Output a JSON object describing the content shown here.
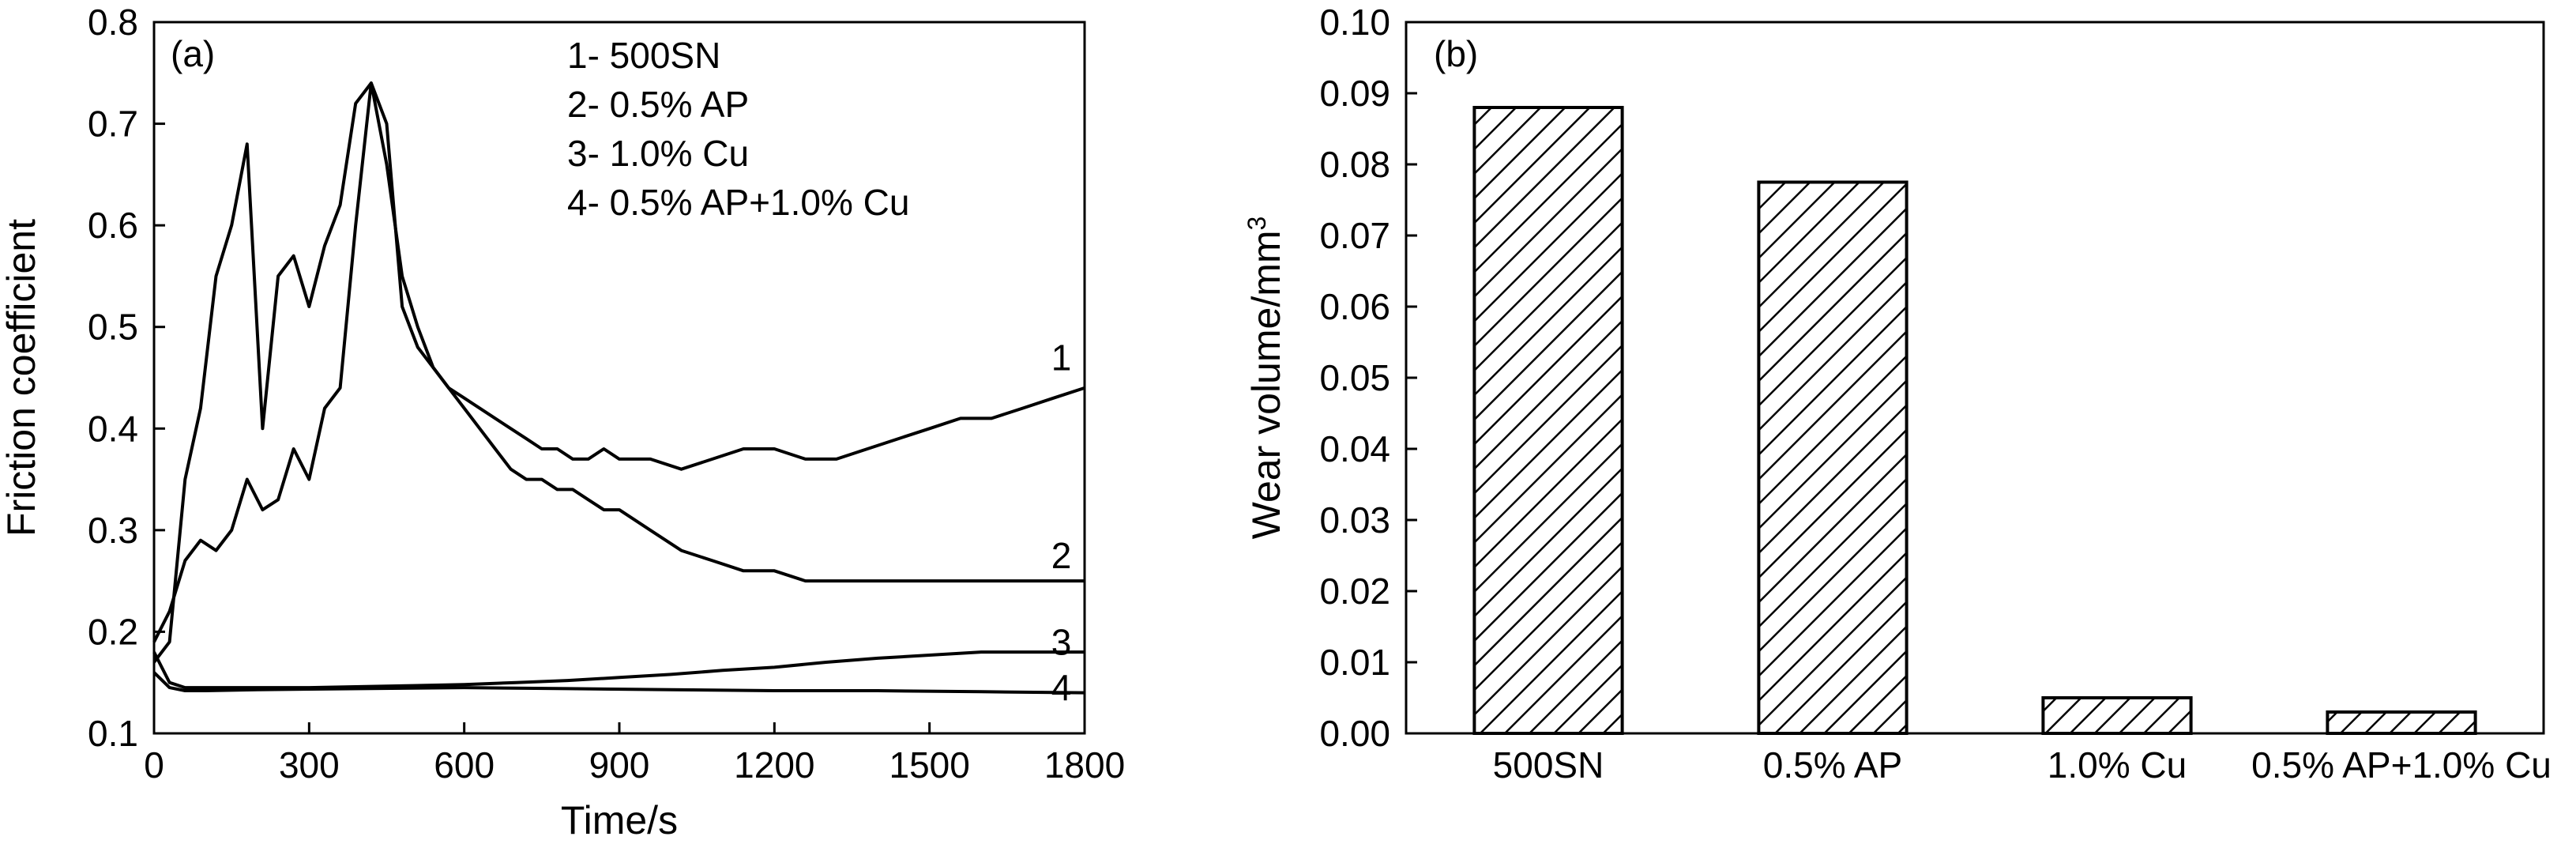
{
  "chart_data": [
    {
      "type": "line",
      "panel_label": "(a)",
      "xlabel": "Time/s",
      "ylabel": "Friction coefficient",
      "xlim": [
        0,
        1800
      ],
      "ylim": [
        0.1,
        0.8
      ],
      "xticks": [
        "0",
        "300",
        "600",
        "900",
        "1200",
        "1500",
        "1800"
      ],
      "yticks": [
        "0.1",
        "0.2",
        "0.3",
        "0.4",
        "0.5",
        "0.6",
        "0.7",
        "0.8"
      ],
      "grid": false,
      "legend_entries": [
        "1- 500SN",
        "2- 0.5% AP",
        "3- 1.0% Cu",
        "4- 0.5% AP+1.0% Cu"
      ],
      "legend_position": "top-center",
      "color": "#000000",
      "series": [
        {
          "name": "1",
          "x": [
            0,
            30,
            60,
            90,
            120,
            150,
            180,
            210,
            240,
            270,
            300,
            330,
            360,
            390,
            420,
            450,
            480,
            510,
            540,
            570,
            600,
            630,
            660,
            690,
            720,
            750,
            780,
            810,
            840,
            870,
            900,
            960,
            1020,
            1080,
            1140,
            1200,
            1260,
            1320,
            1380,
            1440,
            1500,
            1560,
            1620,
            1680,
            1740,
            1800
          ],
          "y": [
            0.19,
            0.22,
            0.27,
            0.29,
            0.28,
            0.3,
            0.35,
            0.32,
            0.33,
            0.38,
            0.35,
            0.42,
            0.44,
            0.6,
            0.74,
            0.7,
            0.52,
            0.48,
            0.46,
            0.44,
            0.43,
            0.42,
            0.41,
            0.4,
            0.39,
            0.38,
            0.38,
            0.37,
            0.37,
            0.38,
            0.37,
            0.37,
            0.36,
            0.37,
            0.38,
            0.38,
            0.37,
            0.37,
            0.38,
            0.39,
            0.4,
            0.41,
            0.41,
            0.42,
            0.43,
            0.44
          ]
        },
        {
          "name": "2",
          "x": [
            0,
            30,
            60,
            90,
            120,
            150,
            180,
            210,
            240,
            270,
            300,
            330,
            360,
            390,
            420,
            450,
            480,
            510,
            540,
            570,
            600,
            630,
            660,
            690,
            720,
            750,
            780,
            810,
            840,
            870,
            900,
            960,
            1020,
            1080,
            1140,
            1200,
            1260,
            1320,
            1380,
            1440,
            1500,
            1560,
            1620,
            1680,
            1740,
            1800
          ],
          "y": [
            0.17,
            0.19,
            0.35,
            0.42,
            0.55,
            0.6,
            0.68,
            0.4,
            0.55,
            0.57,
            0.52,
            0.58,
            0.62,
            0.72,
            0.74,
            0.66,
            0.55,
            0.5,
            0.46,
            0.44,
            0.42,
            0.4,
            0.38,
            0.36,
            0.35,
            0.35,
            0.34,
            0.34,
            0.33,
            0.32,
            0.32,
            0.3,
            0.28,
            0.27,
            0.26,
            0.26,
            0.25,
            0.25,
            0.25,
            0.25,
            0.25,
            0.25,
            0.25,
            0.25,
            0.25,
            0.25
          ]
        },
        {
          "name": "3",
          "x": [
            0,
            30,
            60,
            100,
            200,
            300,
            400,
            500,
            600,
            700,
            800,
            900,
            1000,
            1100,
            1200,
            1300,
            1400,
            1500,
            1600,
            1700,
            1800
          ],
          "y": [
            0.18,
            0.15,
            0.145,
            0.145,
            0.145,
            0.145,
            0.146,
            0.147,
            0.148,
            0.15,
            0.152,
            0.155,
            0.158,
            0.162,
            0.165,
            0.17,
            0.174,
            0.177,
            0.18,
            0.18,
            0.18
          ]
        },
        {
          "name": "4",
          "x": [
            0,
            30,
            60,
            100,
            200,
            400,
            600,
            800,
            1000,
            1200,
            1400,
            1600,
            1800
          ],
          "y": [
            0.16,
            0.145,
            0.142,
            0.142,
            0.143,
            0.144,
            0.145,
            0.144,
            0.143,
            0.142,
            0.142,
            0.141,
            0.14
          ]
        }
      ],
      "curve_labels": [
        {
          "text": "1",
          "x": 1755,
          "y": 0.47
        },
        {
          "text": "2",
          "x": 1755,
          "y": 0.275
        },
        {
          "text": "3",
          "x": 1755,
          "y": 0.19
        },
        {
          "text": "4",
          "x": 1755,
          "y": 0.145
        }
      ]
    },
    {
      "type": "bar",
      "panel_label": "(b)",
      "xlabel": "",
      "ylabel": "Wear volume/mm",
      "ylabel_superscript": "3",
      "categories": [
        "500SN",
        "0.5% AP",
        "1.0% Cu",
        "0.5% AP+1.0% Cu"
      ],
      "values": [
        0.088,
        0.0775,
        0.005,
        0.003
      ],
      "ylim": [
        0,
        0.1
      ],
      "yticks": [
        "0.00",
        "0.01",
        "0.02",
        "0.03",
        "0.04",
        "0.05",
        "0.06",
        "0.07",
        "0.08",
        "0.09",
        "0.10"
      ],
      "grid": false,
      "fill": "diagonal-hatch",
      "color": "#000000"
    }
  ]
}
